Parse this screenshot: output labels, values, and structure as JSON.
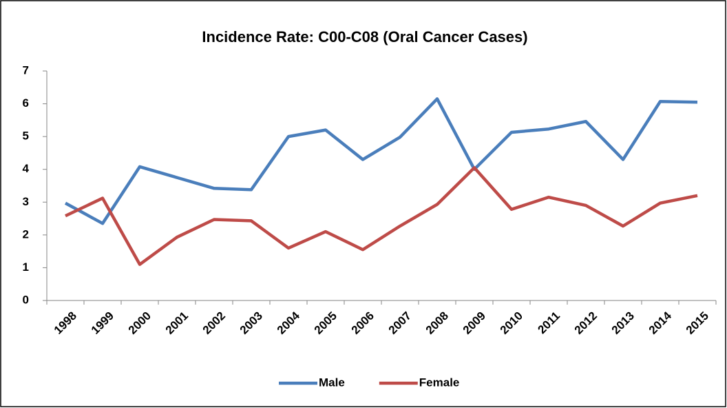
{
  "chart_data": {
    "type": "line",
    "title": "Incidence Rate: C00-C08  (Oral Cancer Cases)",
    "categories": [
      "1998",
      "1999",
      "2000",
      "2001",
      "2002",
      "2003",
      "2004",
      "2005",
      "2006",
      "2007",
      "2008",
      "2009",
      "2010",
      "2011",
      "2012",
      "2013",
      "2014",
      "2015"
    ],
    "series": [
      {
        "name": "Male",
        "color": "#4a7ebb",
        "values": [
          2.97,
          2.35,
          4.08,
          3.75,
          3.42,
          3.38,
          5.0,
          5.2,
          4.3,
          4.98,
          6.15,
          4.0,
          5.13,
          5.23,
          5.46,
          4.3,
          6.07,
          6.05
        ]
      },
      {
        "name": "Female",
        "color": "#be4b48",
        "values": [
          2.58,
          3.12,
          1.1,
          1.93,
          2.47,
          2.43,
          1.6,
          2.1,
          1.55,
          2.27,
          2.93,
          4.05,
          2.78,
          3.15,
          2.9,
          2.27,
          2.97,
          3.2
        ]
      }
    ],
    "ylim": [
      0,
      7
    ],
    "yticks": [
      0,
      1,
      2,
      3,
      4,
      5,
      6,
      7
    ],
    "grid": false,
    "legend": "bottom"
  }
}
